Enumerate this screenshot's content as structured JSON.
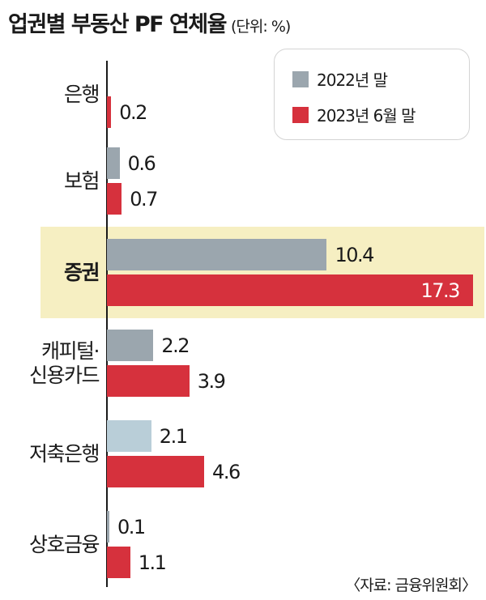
{
  "title": "업권별 부동산 PF 연체율",
  "unit": "(단위: %)",
  "source": "〈자료: 금융위원회〉",
  "colors": {
    "gray": "#9ba6ae",
    "light_blue": "#b9ced8",
    "red": "#d6313d",
    "highlight": "#f6efc2"
  },
  "chart_data": {
    "type": "bar",
    "orientation": "horizontal",
    "categories": [
      "은행",
      "보험",
      "증권",
      "캐피털·\n신용카드",
      "저축은행",
      "상호금융"
    ],
    "series": [
      {
        "name": "2022년 말",
        "values": [
          null,
          0.6,
          10.4,
          2.2,
          2.1,
          0.1
        ]
      },
      {
        "name": "2023년 6월 말",
        "values": [
          0.2,
          0.7,
          17.3,
          3.9,
          4.6,
          1.1
        ]
      }
    ],
    "highlighted_category": "증권",
    "legend_position": "top-right",
    "grid": false
  }
}
